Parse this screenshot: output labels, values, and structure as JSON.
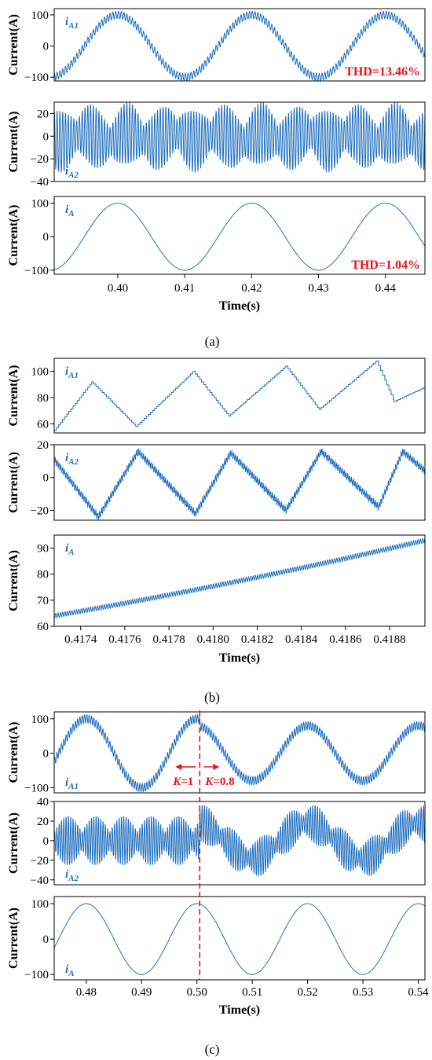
{
  "figure": {
    "caption_a": "(a)",
    "caption_b": "(b)",
    "caption_c": "(c)"
  },
  "colors": {
    "trace": "#1f6fbf",
    "annotation": "#e8141c"
  },
  "chart_data": [
    {
      "id": "a",
      "type": "line",
      "xlabel": "Time(s)",
      "xlim": [
        0.3905,
        0.4459
      ],
      "xticks": [
        0.4,
        0.41,
        0.42,
        0.43,
        0.44
      ],
      "xtick_labels": [
        "0.40",
        "0.41",
        "0.42",
        "0.43",
        "0.44"
      ],
      "panels": [
        {
          "signal": "iA1",
          "label_main": "i",
          "label_sub": "A1",
          "ylabel": "Current(A)",
          "ylim": [
            -112,
            120
          ],
          "yticks": [
            -100,
            0,
            100
          ],
          "ytick_labels": [
            "−100",
            "0",
            "100"
          ],
          "annotation": "THD=13.46%",
          "waveform": {
            "kind": "sine_ripple",
            "amplitude": 100,
            "frequency_hz": 50,
            "peak_time_s": 0.4,
            "ripple_amplitude": 12,
            "ripple_frequency_hz": 2400
          }
        },
        {
          "signal": "iA2",
          "label_main": "i",
          "label_sub": "A2",
          "ylabel": "Current(A)",
          "ylim": [
            -40,
            30
          ],
          "yticks": [
            -40,
            -20,
            0,
            20
          ],
          "ytick_labels": [
            "−40",
            "−20",
            "0",
            "20"
          ],
          "waveform": {
            "kind": "modulated_ripple",
            "ripple_envelope_max": 27,
            "ripple_frequency_hz": 2400
          }
        },
        {
          "signal": "iA",
          "label_main": "i",
          "label_sub": "A",
          "ylabel": "Current(A)",
          "ylim": [
            -112,
            120
          ],
          "yticks": [
            -100,
            0,
            100
          ],
          "ytick_labels": [
            "−100",
            "0",
            "100"
          ],
          "annotation": "THD=1.04%",
          "waveform": {
            "kind": "sine",
            "amplitude": 100,
            "frequency_hz": 50,
            "peak_time_s": 0.4
          }
        }
      ]
    },
    {
      "id": "b",
      "type": "line",
      "xlabel": "Time(s)",
      "xlim": [
        0.41728,
        0.41896
      ],
      "xticks": [
        0.4174,
        0.4176,
        0.4178,
        0.418,
        0.4182,
        0.4184,
        0.4186,
        0.4188
      ],
      "xtick_labels": [
        "0.4174",
        "0.4176",
        "0.4178",
        "0.4180",
        "0.4182",
        "0.4184",
        "0.4186",
        "0.4188"
      ],
      "panels": [
        {
          "signal": "iA1",
          "label_main": "i",
          "label_sub": "A1",
          "ylabel": "Current(A)",
          "ylim": [
            53,
            110
          ],
          "yticks": [
            60,
            80,
            100
          ],
          "ytick_labels": [
            "60",
            "80",
            "100"
          ],
          "waveform": {
            "kind": "staircase_triangle",
            "points": [
              [
                0.41728,
                55
              ],
              [
                0.41745,
                92
              ],
              [
                0.41765,
                58
              ],
              [
                0.41791,
                100
              ],
              [
                0.41807,
                66
              ],
              [
                0.41833,
                104
              ],
              [
                0.41848,
                71
              ],
              [
                0.41874,
                108
              ],
              [
                0.41882,
                77
              ],
              [
                0.41896,
                88
              ]
            ]
          }
        },
        {
          "signal": "iA2",
          "label_main": "i",
          "label_sub": "A2",
          "ylabel": "Current(A)",
          "ylim": [
            -26,
            20
          ],
          "yticks": [
            -20,
            0,
            20
          ],
          "ytick_labels": [
            "−20",
            "0",
            "20"
          ],
          "waveform": {
            "kind": "jagged_triangle",
            "points": [
              [
                0.41728,
                11
              ],
              [
                0.41748,
                -24
              ],
              [
                0.41766,
                16
              ],
              [
                0.41792,
                -22
              ],
              [
                0.41808,
                15
              ],
              [
                0.41833,
                -20
              ],
              [
                0.41849,
                16
              ],
              [
                0.41875,
                -18
              ],
              [
                0.41886,
                16
              ],
              [
                0.41896,
                4
              ]
            ]
          }
        },
        {
          "signal": "iA",
          "label_main": "i",
          "label_sub": "A",
          "ylabel": "Current(A)",
          "ylim": [
            60,
            95
          ],
          "yticks": [
            60,
            70,
            80,
            90
          ],
          "ytick_labels": [
            "60",
            "70",
            "80",
            "90"
          ],
          "waveform": {
            "kind": "slow_rise",
            "start": 64,
            "end": 93
          }
        }
      ]
    },
    {
      "id": "c",
      "type": "line",
      "xlabel": "Time(s)",
      "xlim": [
        0.4742,
        0.5412
      ],
      "xticks": [
        0.48,
        0.49,
        0.5,
        0.51,
        0.52,
        0.53,
        0.54
      ],
      "xtick_labels": [
        "0.48",
        "0.49",
        "0.50",
        "0.51",
        "0.52",
        "0.53",
        "0.54"
      ],
      "switch_time": 0.5005,
      "annotation_left": {
        "italic": "K",
        "text": "=1"
      },
      "annotation_right": {
        "italic": "K",
        "text": "=0.8"
      },
      "panels": [
        {
          "signal": "iA1",
          "label_main": "i",
          "label_sub": "A1",
          "ylabel": "Current(A)",
          "ylim": [
            -115,
            120
          ],
          "yticks": [
            -100,
            0,
            100
          ],
          "ytick_labels": [
            "−100",
            "0",
            "100"
          ],
          "waveform": {
            "kind": "sine_ripple_scaled",
            "amplitude_before": 100,
            "amplitude_after": 80,
            "frequency_hz": 50,
            "peak_time_s": 0.48,
            "ripple_amplitude": 12,
            "ripple_frequency_hz": 2400
          }
        },
        {
          "signal": "iA2",
          "label_main": "i",
          "label_sub": "A2",
          "ylabel": "Current(A)",
          "ylim": [
            -45,
            40
          ],
          "yticks": [
            -40,
            -20,
            0,
            20,
            40
          ],
          "ytick_labels": [
            "−40",
            "−20",
            "0",
            "20",
            "40"
          ],
          "waveform": {
            "kind": "modulated_ripple_scaled",
            "ripple_envelope_before": 25,
            "ripple_envelope_after": 20,
            "ripple_frequency_hz": 2400
          }
        },
        {
          "signal": "iA",
          "label_main": "i",
          "label_sub": "A",
          "ylabel": "Current(A)",
          "ylim": [
            -115,
            120
          ],
          "yticks": [
            -100,
            0,
            100
          ],
          "ytick_labels": [
            "−100",
            "0",
            "100"
          ],
          "waveform": {
            "kind": "sine",
            "amplitude": 100,
            "frequency_hz": 50,
            "peak_time_s": 0.48
          }
        }
      ]
    }
  ]
}
